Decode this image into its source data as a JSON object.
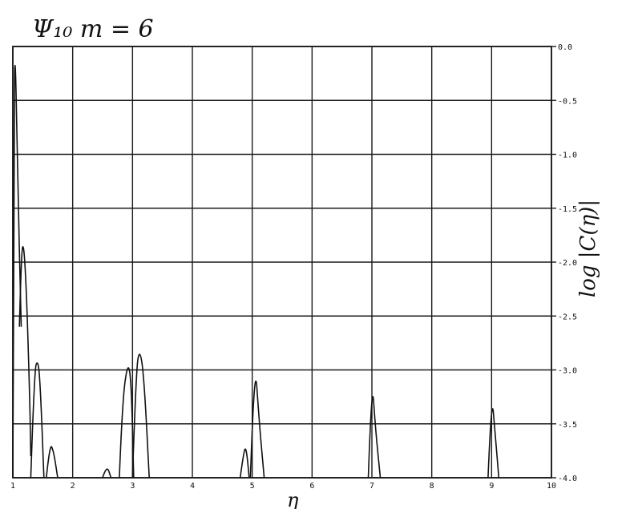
{
  "chart_data": {
    "type": "line",
    "title": "Ψ₁₀   m = 6",
    "xlabel": "η",
    "ylabel": "log |C(η)|",
    "xlim": [
      1,
      10
    ],
    "ylim": [
      -4.0,
      0.0
    ],
    "x_ticks": [
      1,
      2,
      3,
      4,
      5,
      6,
      7,
      8,
      9,
      10
    ],
    "x_tick_labels": [
      "1",
      "2",
      "3",
      "4",
      "5",
      "6",
      "7",
      "8",
      "9",
      "10"
    ],
    "y_ticks": [
      0.0,
      -0.5,
      -1.0,
      -1.5,
      -2.0,
      -2.5,
      -3.0,
      -3.5,
      -4.0
    ],
    "y_tick_labels": [
      "0.0",
      "-0.5",
      "-1.0",
      "-1.5",
      "-2.0",
      "-2.5",
      "-3.0",
      "-3.5",
      "-4.0"
    ],
    "y_axis_side": "right",
    "grid": true,
    "lobes": [
      {
        "points": [
          [
            1.0,
            -4.0
          ],
          [
            1.02,
            -0.5
          ],
          [
            1.04,
            0.0
          ],
          [
            1.08,
            -1.2
          ],
          [
            1.14,
            -2.6
          ]
        ]
      },
      {
        "points": [
          [
            1.11,
            -2.6
          ],
          [
            1.14,
            -1.95
          ],
          [
            1.18,
            -1.8
          ],
          [
            1.23,
            -2.3
          ],
          [
            1.28,
            -3.2
          ],
          [
            1.3,
            -3.8
          ]
        ]
      },
      {
        "points": [
          [
            1.3,
            -4.0
          ],
          [
            1.36,
            -3.0
          ],
          [
            1.42,
            -2.9
          ],
          [
            1.46,
            -3.15
          ],
          [
            1.52,
            -4.0
          ]
        ]
      },
      {
        "points": [
          [
            1.56,
            -4.0
          ],
          [
            1.62,
            -3.68
          ],
          [
            1.68,
            -3.75
          ],
          [
            1.75,
            -4.0
          ]
        ]
      },
      {
        "points": [
          [
            2.5,
            -4.0
          ],
          [
            2.57,
            -3.88
          ],
          [
            2.64,
            -4.0
          ]
        ]
      },
      {
        "points": [
          [
            2.78,
            -4.0
          ],
          [
            2.83,
            -3.3
          ],
          [
            2.92,
            -2.92
          ],
          [
            2.98,
            -3.1
          ],
          [
            3.02,
            -4.0
          ]
        ]
      },
      {
        "points": [
          [
            3.0,
            -4.0
          ],
          [
            3.06,
            -3.0
          ],
          [
            3.12,
            -2.8
          ],
          [
            3.19,
            -3.05
          ],
          [
            3.28,
            -4.0
          ]
        ]
      },
      {
        "points": [
          [
            4.8,
            -4.0
          ],
          [
            4.86,
            -3.75
          ],
          [
            4.9,
            -3.72
          ],
          [
            4.95,
            -4.0
          ]
        ]
      },
      {
        "points": [
          [
            4.97,
            -4.0
          ],
          [
            5.04,
            -2.85
          ],
          [
            5.12,
            -3.5
          ],
          [
            5.2,
            -4.0
          ]
        ]
      },
      {
        "points": [
          [
            6.94,
            -4.0
          ],
          [
            7.0,
            -3.05
          ],
          [
            7.06,
            -3.55
          ],
          [
            7.14,
            -4.0
          ]
        ]
      },
      {
        "points": [
          [
            8.94,
            -4.0
          ],
          [
            9.0,
            -3.2
          ],
          [
            9.06,
            -3.6
          ],
          [
            9.12,
            -4.0
          ]
        ]
      }
    ]
  }
}
